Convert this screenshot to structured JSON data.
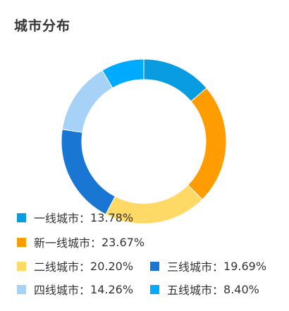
{
  "title": "城市分布",
  "separator": "：",
  "chart_data": {
    "type": "pie",
    "title": "城市分布",
    "donut": true,
    "start_angle_deg": 0,
    "direction": "clockwise",
    "legend_position": "bottom-left",
    "slices": [
      {
        "label": "一线城市",
        "value": 13.78,
        "value_text": "13.78%",
        "color": "#0a9ce0"
      },
      {
        "label": "新一线城市",
        "value": 23.67,
        "value_text": "23.67%",
        "color": "#ff9c00"
      },
      {
        "label": "二线城市",
        "value": 20.2,
        "value_text": "20.20%",
        "color": "#ffd966"
      },
      {
        "label": "三线城市",
        "value": 19.69,
        "value_text": "19.69%",
        "color": "#1976d2"
      },
      {
        "label": "四线城市",
        "value": 14.26,
        "value_text": "14.26%",
        "color": "#a6d2f7"
      },
      {
        "label": "五线城市",
        "value": 8.4,
        "value_text": "8.40%",
        "color": "#00aaff"
      }
    ]
  }
}
